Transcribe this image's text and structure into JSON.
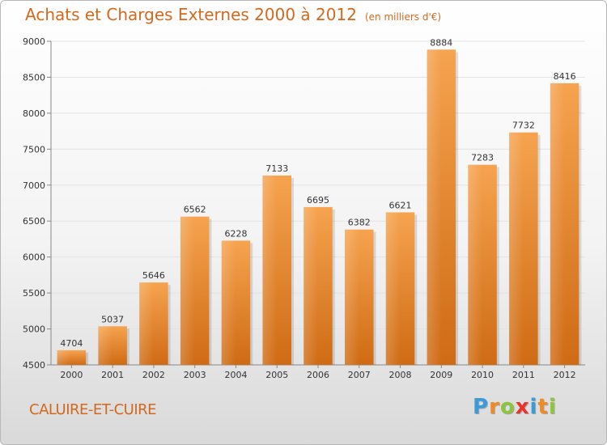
{
  "header": {
    "title": "Achats et Charges Externes 2000 à 2012",
    "subtitle": "(en milliers d'€)"
  },
  "commune": "CALUIRE-ET-CUIRE",
  "logo": {
    "letters": [
      "P",
      "r",
      "o",
      "x",
      "i",
      "t",
      "i"
    ],
    "colors": [
      "#3a9bd8",
      "#f08a24",
      "#8cc63f",
      "#e8342c",
      "#3a9bd8",
      "#f08a24",
      "#8cc63f"
    ]
  },
  "chart_data": {
    "type": "bar",
    "categories": [
      "2000",
      "2001",
      "2002",
      "2003",
      "2004",
      "2005",
      "2006",
      "2007",
      "2008",
      "2009",
      "2010",
      "2011",
      "2012"
    ],
    "values": [
      4704,
      5037,
      5646,
      6562,
      6228,
      7133,
      6695,
      6382,
      6621,
      8884,
      7283,
      7732,
      8416
    ],
    "ylim": [
      4500,
      9000
    ],
    "yticks": [
      4500,
      5000,
      5500,
      6000,
      6500,
      7000,
      7500,
      8000,
      8500,
      9000
    ],
    "grid": true,
    "bar_color": "#f39c3f",
    "title": "Achats et Charges Externes 2000 à 2012",
    "xlabel": "",
    "ylabel": ""
  }
}
